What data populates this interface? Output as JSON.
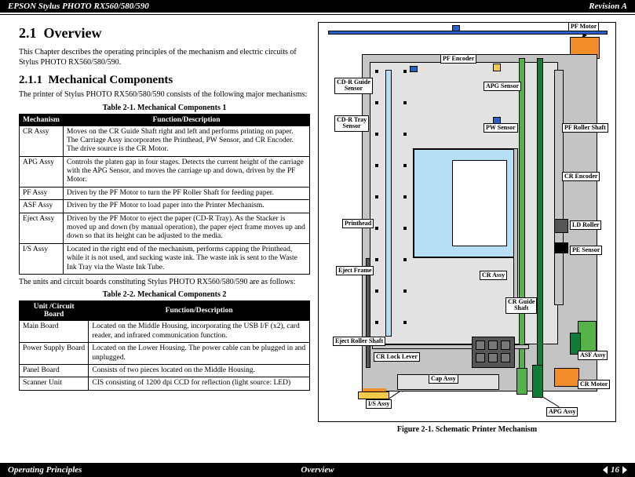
{
  "header": {
    "left": "EPSON Stylus PHOTO RX560/580/590",
    "right": "Revision A"
  },
  "footer": {
    "left": "Operating Principles",
    "center": "Overview",
    "page": "16"
  },
  "section_num": "2.1",
  "section_title": "Overview",
  "intro": "This Chapter describes the operating principles of the mechanism and electric circuits of Stylus PHOTO RX560/580/590.",
  "subsection_num": "2.1.1",
  "subsection_title": "Mechanical Components",
  "sub_intro": "The printer of Stylus PHOTO RX560/580/590 consists of the following major mechanisms:",
  "table1": {
    "caption": "Table 2-1.  Mechanical Components 1",
    "headers": [
      "Mechanism",
      "Function/Description"
    ],
    "rows": [
      [
        "CR Assy",
        "Moves on the CR Guide Shaft right and left and performs printing on paper. The Carriage Assy incorporates the Printhead, PW Sensor, and CR Encoder. The drive source is the CR Motor."
      ],
      [
        "APG Assy",
        "Controls the platen gap in four stages.\nDetects the current height of the carriage with the APG Sensor, and moves the carriage up and down, driven by the PF Motor."
      ],
      [
        "PF Assy",
        "Driven by the PF Motor to turn the PF Roller Shaft for feeding paper."
      ],
      [
        "ASF Assy",
        "Driven by the PF Motor to load paper into the Printer Mechanism."
      ],
      [
        "Eject Assy",
        "Driven by the PF Motor to eject the paper (CD-R Tray).\nAs the Stacker is moved up and down (by manual operation), the paper eject frame moves up and down so that its height can be adjusted to the media."
      ],
      [
        "I/S Assy",
        "Located in the right end of the mechanism, performs capping the Printhead, while it is not used, and sucking waste ink. The waste ink is sent to the Waste Ink Tray via the Waste Ink Tube."
      ]
    ]
  },
  "mid_text": "The units and circuit boards constituting Stylus PHOTO RX560/580/590 are as follows:",
  "table2": {
    "caption": "Table 2-2.  Mechanical Components 2",
    "headers": [
      "Unit /Circuit Board",
      "Function/Description"
    ],
    "rows": [
      [
        "Main Board",
        "Located on the Middle Housing, incorporating the USB I/F (x2), card reader, and infrared communication function."
      ],
      [
        "Power Supply Board",
        "Located on the Lower Housing. The power cable can be plugged in and unplugged."
      ],
      [
        "Panel Board",
        "Consists of two pieces located on the Middle Housing."
      ],
      [
        "Scanner Unit",
        "CIS consisting of 1200 dpi CCD for reflection (light source: LED)"
      ]
    ]
  },
  "figure_caption": "Figure 2-1.  Schematic Printer Mechanism",
  "diagram": {
    "labels": {
      "pf_motor": "PF Motor",
      "pf_encoder": "PF Encoder",
      "apg_sensor": "APG Sensor",
      "pw_sensor": "PW Sensor",
      "pf_roller_shaft": "PF Roller Shaft",
      "cdr_guide": "CD-R Guide\nSensor",
      "cdr_tray": "CD-R Tray\nSensor",
      "cr_encoder": "CR Encoder",
      "printhead": "Printhead",
      "ld_roller": "LD Roller",
      "pe_sensor": "PE Sensor",
      "eject_frame": "Eject Frame",
      "cr_assy": "CR Assy",
      "cr_guide_shaft": "CR Guide\nShaft",
      "eject_roller_shaft": "Eject Roller Shaft",
      "cr_lock_lever": "CR Lock Lever",
      "cap_assy": "Cap Assy",
      "asf_assy": "ASF Assy",
      "is_assy": "I/S Assy",
      "cr_motor": "CR Motor",
      "apg_assy": "APG Assy"
    },
    "colors": {
      "frame_gray": "#c4c4c4",
      "lt_blue": "#b6dff5",
      "green": "#55b248",
      "dk_green": "#0f7d37",
      "orange": "#f28c28",
      "yellow": "#f7c948",
      "blue": "#2860c4",
      "dk_gray": "#555555",
      "black": "#000000",
      "lt_gray": "#e2e2e2"
    }
  }
}
